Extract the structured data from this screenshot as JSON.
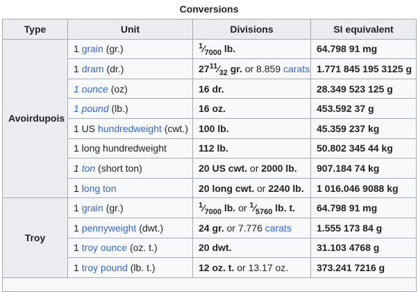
{
  "title": "Conversions",
  "colors": {
    "header_bg": "#eaecf0",
    "cell_bg": "#f8f9fa",
    "border": "#a2a9b1",
    "link": "#3366cc",
    "text": "#202122"
  },
  "table": {
    "headers": [
      "Type",
      "Unit",
      "Divisions",
      "SI equivalent"
    ],
    "sections": [
      {
        "type": "Avoirdupois",
        "rows": [
          {
            "unit": [
              {
                "text": "1 "
              },
              {
                "text": "grain",
                "link": true
              },
              {
                "text": " (gr.)"
              }
            ],
            "divisions": [
              {
                "frac": [
                  "1",
                  "7000"
                ],
                "bold": true
              },
              {
                "text": " lb.",
                "bold": true
              }
            ],
            "si": "64.798 91 mg"
          },
          {
            "unit": [
              {
                "text": "1 "
              },
              {
                "text": "dram",
                "link": true
              },
              {
                "text": " (dr.)"
              }
            ],
            "divisions": [
              {
                "text": "27",
                "bold": true
              },
              {
                "frac": [
                  "11",
                  "32"
                ],
                "bold": true
              },
              {
                "text": " gr.",
                "bold": true
              },
              {
                "text": " or 8.859 "
              },
              {
                "text": "carats",
                "link": true
              }
            ],
            "si": "1.771 845 195 3125 g"
          },
          {
            "unit": [
              {
                "text": "1 ounce",
                "link": true,
                "italic": true
              },
              {
                "text": " (oz)"
              }
            ],
            "divisions": [
              {
                "text": "16 dr.",
                "bold": true
              }
            ],
            "si": "28.349 523 125 g"
          },
          {
            "unit": [
              {
                "text": "1 pound",
                "link": true,
                "italic": true
              },
              {
                "text": " (lb.)"
              }
            ],
            "divisions": [
              {
                "text": "16 oz.",
                "bold": true
              }
            ],
            "si": "453.592 37 g"
          },
          {
            "unit": [
              {
                "text": "1 US "
              },
              {
                "text": "hundredweight",
                "link": true
              },
              {
                "text": " (cwt.)"
              }
            ],
            "divisions": [
              {
                "text": "100 lb.",
                "bold": true
              }
            ],
            "si": "45.359 237 kg"
          },
          {
            "unit": [
              {
                "text": "1 long hundredweight"
              }
            ],
            "divisions": [
              {
                "text": "112 lb.",
                "bold": true
              }
            ],
            "si": "50.802 345 44 kg"
          },
          {
            "unit": [
              {
                "text": "1 ",
                "italic": true
              },
              {
                "text": "ton",
                "link": true,
                "italic": true
              },
              {
                "text": " (short ton)"
              }
            ],
            "divisions": [
              {
                "text": "20 US cwt.",
                "bold": true
              },
              {
                "text": " or "
              },
              {
                "text": "2000 lb.",
                "bold": true
              }
            ],
            "si": "907.184 74 kg"
          },
          {
            "unit": [
              {
                "text": "1 "
              },
              {
                "text": "long ton",
                "link": true
              }
            ],
            "divisions": [
              {
                "text": "20 long cwt.",
                "bold": true
              },
              {
                "text": " or "
              },
              {
                "text": "2240 lb.",
                "bold": true
              }
            ],
            "si": "1 016.046 9088 kg"
          }
        ]
      },
      {
        "type": "Troy",
        "rows": [
          {
            "unit": [
              {
                "text": "1 "
              },
              {
                "text": "grain",
                "link": true
              },
              {
                "text": " (gr.)"
              }
            ],
            "divisions": [
              {
                "frac": [
                  "1",
                  "7000"
                ],
                "bold": true
              },
              {
                "text": " lb.",
                "bold": true
              },
              {
                "text": " or "
              },
              {
                "frac": [
                  "1",
                  "5760"
                ],
                "bold": true
              },
              {
                "text": " lb. t.",
                "bold": true
              }
            ],
            "si": "64.798 91 mg"
          },
          {
            "unit": [
              {
                "text": "1 "
              },
              {
                "text": "pennyweight",
                "link": true
              },
              {
                "text": " (dwt.)"
              }
            ],
            "divisions": [
              {
                "text": "24 gr.",
                "bold": true
              },
              {
                "text": " or 7.776 "
              },
              {
                "text": "carats",
                "link": true
              }
            ],
            "si": "1.555 173 84 g"
          },
          {
            "unit": [
              {
                "text": "1 "
              },
              {
                "text": "troy ounce",
                "link": true
              },
              {
                "text": " (oz. t.)"
              }
            ],
            "divisions": [
              {
                "text": "20 dwt.",
                "bold": true
              }
            ],
            "si": "31.103 4768 g"
          },
          {
            "unit": [
              {
                "text": "1 "
              },
              {
                "text": "troy pound",
                "link": true
              },
              {
                "text": " (lb. t.)"
              }
            ],
            "divisions": [
              {
                "text": "12 oz. t.",
                "bold": true
              },
              {
                "text": " or 13.17 oz."
              }
            ],
            "si": "373.241 7216 g"
          }
        ]
      }
    ]
  }
}
